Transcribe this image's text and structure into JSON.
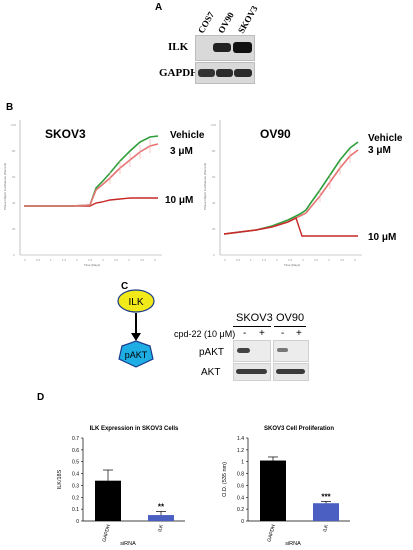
{
  "panelA": {
    "letter": "A",
    "lanes": [
      "COS7",
      "OV90",
      "SKOV3"
    ],
    "rows": [
      {
        "label": "ILK",
        "intensity": [
          0.0,
          0.85,
          0.95
        ]
      },
      {
        "label": "GAPDH",
        "intensity": [
          0.8,
          0.85,
          0.85
        ]
      }
    ]
  },
  "panelB": {
    "letter": "B",
    "charts": [
      {
        "title": "SKOV3",
        "ylabel": "Phase Object Confluence (Percent)",
        "xlabel": "Time (Days)",
        "labels": [
          "Vehicle",
          "3 μM",
          "10 μM"
        ]
      },
      {
        "title": "OV90",
        "ylabel": "Phase Object Confluence (Percent)",
        "xlabel": "Time (Days)",
        "labels": [
          "Vehicle",
          "3 μM",
          "10 μM"
        ]
      }
    ]
  },
  "panelC": {
    "letter": "C",
    "node1": "ILK",
    "node2": "pAKT",
    "cell_lines": [
      "SKOV3",
      "OV90"
    ],
    "treatment_label": "cpd-22 (10 μM)",
    "signs": [
      "-",
      "+",
      "-",
      "+"
    ],
    "rows": [
      "pAKT",
      "AKT"
    ]
  },
  "panelD": {
    "letter": "D",
    "chart_data": [
      {
        "type": "bar",
        "title": "ILK Expression in SKOV3 Cells",
        "ylabel": "ILK/18S",
        "xlabel": "siRNA",
        "categories": [
          "GAPDH",
          "ILK"
        ],
        "values": [
          0.34,
          0.05
        ],
        "errors": [
          0.09,
          0.03
        ],
        "ylim": [
          0,
          0.7
        ],
        "yticks": [
          "0",
          "0.1",
          "0.2",
          "0.3",
          "0.4",
          "0.5",
          "0.6",
          "0.7"
        ],
        "colors": [
          "#000000",
          "#4a5fc1"
        ],
        "significance": [
          "",
          "**"
        ]
      },
      {
        "type": "bar",
        "title": "SKOV3 Cell Proliferation",
        "ylabel": "O.D. (535 nm)",
        "xlabel": "siRNA",
        "categories": [
          "GAPDH",
          "ILK"
        ],
        "values": [
          1.02,
          0.3
        ],
        "errors": [
          0.06,
          0.03
        ],
        "ylim": [
          0,
          1.4
        ],
        "yticks": [
          "0",
          "0.2",
          "0.4",
          "0.6",
          "0.8",
          "1",
          "1.2",
          "1.4"
        ],
        "colors": [
          "#000000",
          "#4a5fc1"
        ],
        "significance": [
          "",
          "***"
        ]
      }
    ]
  }
}
